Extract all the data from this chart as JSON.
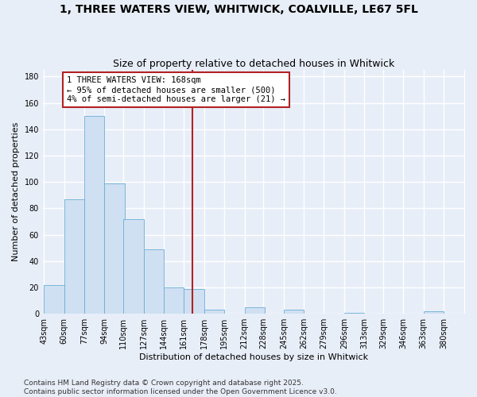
{
  "title": "1, THREE WATERS VIEW, WHITWICK, COALVILLE, LE67 5FL",
  "subtitle": "Size of property relative to detached houses in Whitwick",
  "xlabel": "Distribution of detached houses by size in Whitwick",
  "ylabel": "Number of detached properties",
  "bin_labels": [
    "43sqm",
    "60sqm",
    "77sqm",
    "94sqm",
    "110sqm",
    "127sqm",
    "144sqm",
    "161sqm",
    "178sqm",
    "195sqm",
    "212sqm",
    "228sqm",
    "245sqm",
    "262sqm",
    "279sqm",
    "296sqm",
    "313sqm",
    "329sqm",
    "346sqm",
    "363sqm",
    "380sqm"
  ],
  "bin_left_edges": [
    43,
    60,
    77,
    94,
    110,
    127,
    144,
    161,
    178,
    195,
    212,
    228,
    245,
    262,
    279,
    296,
    313,
    329,
    346,
    363,
    380
  ],
  "bar_heights": [
    22,
    87,
    150,
    99,
    72,
    49,
    20,
    19,
    3,
    0,
    5,
    0,
    3,
    0,
    0,
    1,
    0,
    0,
    0,
    2
  ],
  "bar_color": "#cfe0f2",
  "bar_edge_color": "#6aaed6",
  "property_size": 168,
  "vline_color": "#b22222",
  "annotation_text": "1 THREE WATERS VIEW: 168sqm\n← 95% of detached houses are smaller (500)\n4% of semi-detached houses are larger (21) →",
  "annotation_box_edge": "#b22222",
  "footer_text": "Contains HM Land Registry data © Crown copyright and database right 2025.\nContains public sector information licensed under the Open Government Licence v3.0.",
  "ylim_max": 185,
  "background_color": "#e8eef8",
  "grid_color": "#ffffff",
  "title_fontsize": 10,
  "subtitle_fontsize": 9,
  "axis_label_fontsize": 8,
  "tick_fontsize": 7,
  "annotation_fontsize": 7.5,
  "footer_fontsize": 6.5
}
